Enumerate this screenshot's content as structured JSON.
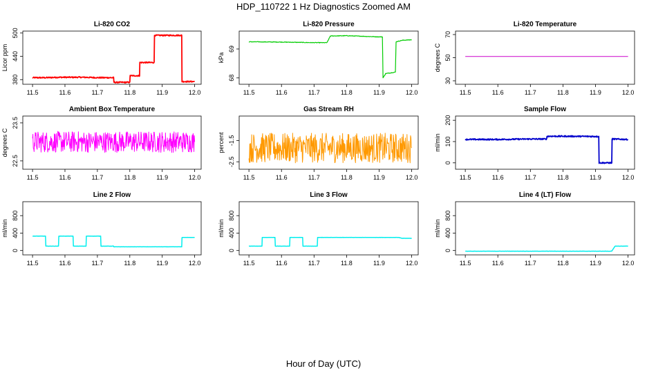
{
  "title": "HDP_110722  1 Hz Diagnostics Zoomed AM",
  "xlabel": "Hour of Day (UTC)",
  "chart_data": [
    {
      "type": "line",
      "title": "Li-820 CO2",
      "ylabel": "Licor ppm",
      "color": "#ff0000",
      "noise": 1.5,
      "linewidth": 1.8,
      "xlim": [
        11.47,
        12.02
      ],
      "ylim": [
        368,
        505
      ],
      "xticks": [
        11.5,
        11.6,
        11.7,
        11.8,
        11.9,
        12.0
      ],
      "yticks": [
        380,
        440,
        500
      ],
      "series": [
        {
          "values": [
            [
              11.5,
              385
            ],
            [
              11.54,
              385
            ],
            [
              11.58,
              386
            ],
            [
              11.62,
              386
            ],
            [
              11.66,
              386
            ],
            [
              11.7,
              385
            ],
            [
              11.75,
              385
            ],
            [
              11.751,
              373
            ],
            [
              11.8,
              373
            ],
            [
              11.801,
              390
            ],
            [
              11.83,
              390
            ],
            [
              11.831,
              424
            ],
            [
              11.875,
              424
            ],
            [
              11.876,
              494
            ],
            [
              11.96,
              494
            ],
            [
              11.961,
              375
            ],
            [
              12.0,
              375
            ]
          ]
        }
      ]
    },
    {
      "type": "line",
      "title": "Li-820 Pressure",
      "ylabel": "kPa",
      "color": "#00cc00",
      "noise": 0.01,
      "linewidth": 1.2,
      "xlim": [
        11.47,
        12.02
      ],
      "ylim": [
        67.78,
        69.62
      ],
      "xticks": [
        11.5,
        11.6,
        11.7,
        11.8,
        11.9,
        12.0
      ],
      "yticks": [
        68.0,
        69.0
      ],
      "series": [
        {
          "values": [
            [
              11.5,
              69.25
            ],
            [
              11.6,
              69.24
            ],
            [
              11.7,
              69.22
            ],
            [
              11.74,
              69.22
            ],
            [
              11.75,
              69.45
            ],
            [
              11.8,
              69.46
            ],
            [
              11.85,
              69.44
            ],
            [
              11.9,
              69.42
            ],
            [
              11.91,
              69.42
            ],
            [
              11.912,
              68.0
            ],
            [
              11.92,
              68.15
            ],
            [
              11.95,
              68.2
            ],
            [
              11.952,
              69.25
            ],
            [
              11.97,
              69.3
            ],
            [
              12.0,
              69.32
            ]
          ]
        }
      ]
    },
    {
      "type": "line",
      "title": "Li-820 Temperature",
      "ylabel": "degrees C",
      "color": "#cc00cc",
      "noise": 0,
      "linewidth": 1,
      "xlim": [
        11.47,
        12.02
      ],
      "ylim": [
        27,
        73
      ],
      "xticks": [
        11.5,
        11.6,
        11.7,
        11.8,
        11.9,
        12.0
      ],
      "yticks": [
        30,
        50,
        70
      ],
      "series": [
        {
          "values": [
            [
              11.5,
              51
            ],
            [
              12.0,
              51
            ]
          ]
        }
      ]
    },
    {
      "type": "line",
      "title": "Ambient Box Temperature",
      "ylabel": "degrees C",
      "color": "#ff00ff",
      "noise": 0.28,
      "linewidth": 1,
      "xlim": [
        11.47,
        12.02
      ],
      "ylim": [
        22.28,
        23.68
      ],
      "xticks": [
        11.5,
        11.6,
        11.7,
        11.8,
        11.9,
        12.0
      ],
      "yticks": [
        22.5,
        23.5
      ],
      "series": [
        {
          "values": [
            [
              11.5,
              23.0
            ],
            [
              12.0,
              23.0
            ]
          ]
        }
      ]
    },
    {
      "type": "line",
      "title": "Gas Stream RH",
      "ylabel": "percent",
      "color": "#ff9900",
      "noise": 0.7,
      "linewidth": 1,
      "xlim": [
        11.47,
        12.02
      ],
      "ylim": [
        -2.85,
        -0.35
      ],
      "xticks": [
        11.5,
        11.6,
        11.7,
        11.8,
        11.9,
        12.0
      ],
      "yticks": [
        -2.5,
        -1.5
      ],
      "series": [
        {
          "values": [
            [
              11.5,
              -1.85
            ],
            [
              12.0,
              -1.85
            ]
          ]
        }
      ]
    },
    {
      "type": "line",
      "title": "Sample Flow",
      "ylabel": "ml/min",
      "color": "#0000cc",
      "noise": 3,
      "linewidth": 1.8,
      "xlim": [
        11.47,
        12.02
      ],
      "ylim": [
        -30,
        220
      ],
      "xticks": [
        11.5,
        11.6,
        11.7,
        11.8,
        11.9,
        12.0
      ],
      "yticks": [
        0,
        100,
        200
      ],
      "series": [
        {
          "values": [
            [
              11.5,
              110
            ],
            [
              11.6,
              110
            ],
            [
              11.7,
              112
            ],
            [
              11.75,
              112
            ],
            [
              11.751,
              125
            ],
            [
              11.8,
              125
            ],
            [
              11.91,
              124
            ],
            [
              11.911,
              0
            ],
            [
              11.95,
              0
            ],
            [
              11.951,
              112
            ],
            [
              12.0,
              110
            ]
          ]
        }
      ]
    },
    {
      "type": "line",
      "title": "Line 2 Flow",
      "ylabel": "ml/min",
      "color": "#00eeee",
      "noise": 2,
      "linewidth": 1.5,
      "xlim": [
        11.47,
        12.02
      ],
      "ylim": [
        -100,
        1120
      ],
      "xticks": [
        11.5,
        11.6,
        11.7,
        11.8,
        11.9,
        12.0
      ],
      "yticks": [
        0,
        400,
        800
      ],
      "series": [
        {
          "values": [
            [
              11.5,
              330
            ],
            [
              11.54,
              330
            ],
            [
              11.541,
              100
            ],
            [
              11.58,
              100
            ],
            [
              11.581,
              330
            ],
            [
              11.625,
              330
            ],
            [
              11.626,
              100
            ],
            [
              11.665,
              100
            ],
            [
              11.666,
              330
            ],
            [
              11.71,
              330
            ],
            [
              11.711,
              100
            ],
            [
              11.75,
              100
            ],
            [
              11.751,
              85
            ],
            [
              11.96,
              85
            ],
            [
              11.961,
              300
            ],
            [
              12.0,
              300
            ]
          ]
        }
      ]
    },
    {
      "type": "line",
      "title": "Line 3 Flow",
      "ylabel": "ml/min",
      "color": "#00eeee",
      "noise": 2,
      "linewidth": 1.5,
      "xlim": [
        11.47,
        12.02
      ],
      "ylim": [
        -100,
        1120
      ],
      "xticks": [
        11.5,
        11.6,
        11.7,
        11.8,
        11.9,
        12.0
      ],
      "yticks": [
        0,
        400,
        800
      ],
      "series": [
        {
          "values": [
            [
              11.5,
              100
            ],
            [
              11.54,
              100
            ],
            [
              11.541,
              300
            ],
            [
              11.58,
              300
            ],
            [
              11.581,
              100
            ],
            [
              11.625,
              100
            ],
            [
              11.626,
              300
            ],
            [
              11.665,
              300
            ],
            [
              11.666,
              100
            ],
            [
              11.71,
              100
            ],
            [
              11.711,
              300
            ],
            [
              11.96,
              300
            ],
            [
              11.97,
              280
            ],
            [
              12.0,
              280
            ]
          ]
        }
      ]
    },
    {
      "type": "line",
      "title": "Line 4 (LT) Flow",
      "ylabel": "ml/min",
      "color": "#00eeee",
      "noise": 2,
      "linewidth": 1.5,
      "xlim": [
        11.47,
        12.02
      ],
      "ylim": [
        -100,
        1120
      ],
      "xticks": [
        11.5,
        11.6,
        11.7,
        11.8,
        11.9,
        12.0
      ],
      "yticks": [
        0,
        400,
        800
      ],
      "series": [
        {
          "values": [
            [
              11.5,
              -15
            ],
            [
              11.95,
              -15
            ],
            [
              11.96,
              100
            ],
            [
              12.0,
              100
            ]
          ]
        }
      ]
    }
  ]
}
